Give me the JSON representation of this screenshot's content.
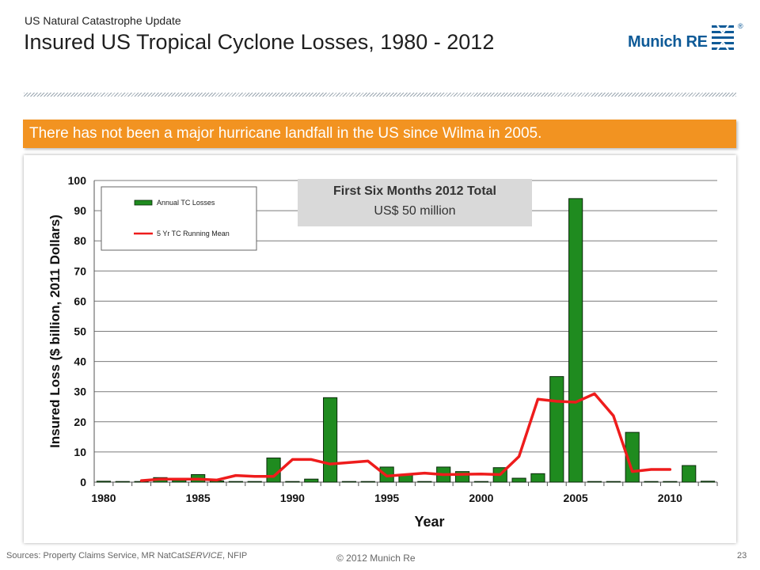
{
  "header": {
    "supertitle": "US Natural Catastrophe Update",
    "title": "Insured US Tropical Cyclone Losses, 1980 - 2012",
    "logo_text": "Munich RE",
    "logo_reg": "®",
    "brand_color": "#0e5a97"
  },
  "banner": {
    "text": "There has not been a major hurricane landfall in the US since Wilma in 2005.",
    "color": "#f29321"
  },
  "infobox": {
    "title": "First Six Months 2012 Total",
    "value": "US$ 50 million"
  },
  "footer": {
    "sources_prefix": "Sources: Property Claims Service, MR NatCat",
    "sources_service": "SERVICE",
    "sources_suffix": ", NFIP",
    "copyright": "© 2012 Munich Re",
    "page": "23"
  },
  "chart_data": {
    "type": "bar",
    "xlabel": "Year",
    "ylabel": "Insured Loss ($ billion, 2011 Dollars)",
    "ylim": [
      0,
      100
    ],
    "yticks": [
      0,
      10,
      20,
      30,
      40,
      50,
      60,
      70,
      80,
      90,
      100
    ],
    "xticks": [
      1980,
      1985,
      1990,
      1995,
      2000,
      2005,
      2010
    ],
    "grid": true,
    "legend_position": "top-left",
    "categories": [
      1980,
      1981,
      1982,
      1983,
      1984,
      1985,
      1986,
      1987,
      1988,
      1989,
      1990,
      1991,
      1992,
      1993,
      1994,
      1995,
      1996,
      1997,
      1998,
      1999,
      2000,
      2001,
      2002,
      2003,
      2004,
      2005,
      2006,
      2007,
      2008,
      2009,
      2010,
      2011,
      2012
    ],
    "series": [
      {
        "name": "Annual TC Losses",
        "kind": "bar",
        "color": "#1f8b1f",
        "values": [
          0.3,
          0,
          0.2,
          1.5,
          0.6,
          2.5,
          0.4,
          0.1,
          0.2,
          8.0,
          0.1,
          1.0,
          28.0,
          0.1,
          0.1,
          5.0,
          2.5,
          0.2,
          5.0,
          3.5,
          0.1,
          4.8,
          1.3,
          2.8,
          35.0,
          94.0,
          0.1,
          0.1,
          16.5,
          0,
          0.2,
          5.5,
          0.3
        ]
      },
      {
        "name": "5 Yr TC Running Mean",
        "kind": "line",
        "color": "#ee1c1c",
        "x": [
          1982,
          1983,
          1984,
          1985,
          1986,
          1987,
          1988,
          1989,
          1990,
          1991,
          1992,
          1993,
          1994,
          1995,
          1996,
          1997,
          1998,
          1999,
          2000,
          2001,
          2002,
          2003,
          2004,
          2005,
          2006,
          2007,
          2008,
          2009,
          2010
        ],
        "values": [
          0.5,
          1.0,
          1.0,
          1.0,
          0.7,
          2.2,
          1.9,
          1.9,
          7.5,
          7.5,
          6.0,
          6.5,
          7.0,
          2.0,
          2.5,
          3.0,
          2.5,
          2.6,
          2.7,
          2.5,
          8.5,
          27.5,
          26.8,
          26.5,
          29.3,
          22.0,
          3.5,
          4.2,
          4.2
        ]
      }
    ]
  }
}
